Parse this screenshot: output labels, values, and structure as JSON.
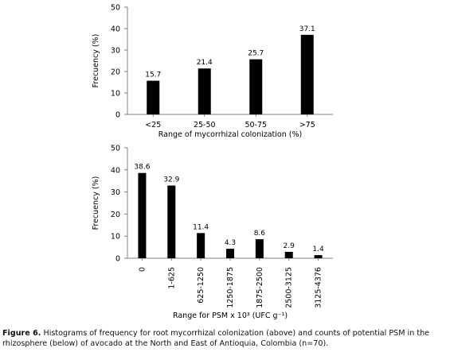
{
  "chart_data": [
    {
      "type": "bar",
      "title": "",
      "xlabel": "Range of mycorrhizal colonization (%)",
      "ylabel": "Frecuency (%)",
      "ylim": [
        0,
        50
      ],
      "yticks": [
        0,
        10,
        20,
        30,
        40,
        50
      ],
      "categories": [
        "<25",
        "25-50",
        "50-75",
        ">75"
      ],
      "values": [
        15.7,
        21.4,
        25.7,
        37.1
      ],
      "data_labels": [
        "15.7",
        "21.4",
        "25.7",
        "37.1"
      ],
      "bar_color": "#000000",
      "grid": false,
      "legend": "none"
    },
    {
      "type": "bar",
      "title": "",
      "xlabel": "Range for PSM x 10³ (UFC g⁻¹)",
      "ylabel": "Frecuency (%)",
      "ylim": [
        0,
        50
      ],
      "yticks": [
        0,
        10,
        20,
        30,
        40,
        50
      ],
      "categories": [
        "0",
        "1-625",
        "625-1250",
        "1250-1875",
        "1875-2500",
        "2500-3125",
        "3125-4376"
      ],
      "values": [
        38.6,
        32.9,
        11.4,
        4.3,
        8.6,
        2.9,
        1.4
      ],
      "data_labels": [
        "38.6",
        "32.9",
        "11.4",
        "4.3",
        "8.6",
        "2.9",
        "1.4"
      ],
      "bar_color": "#000000",
      "grid": false,
      "legend": "none"
    }
  ],
  "caption": {
    "label": "Figure 6.",
    "text": " Histograms of frequency for root mycorrhizal  colonization (above) and counts of potential PSM in the rhizosphere (below) of avocado at the North and East of Antioquia, Colombia (n=70)."
  }
}
